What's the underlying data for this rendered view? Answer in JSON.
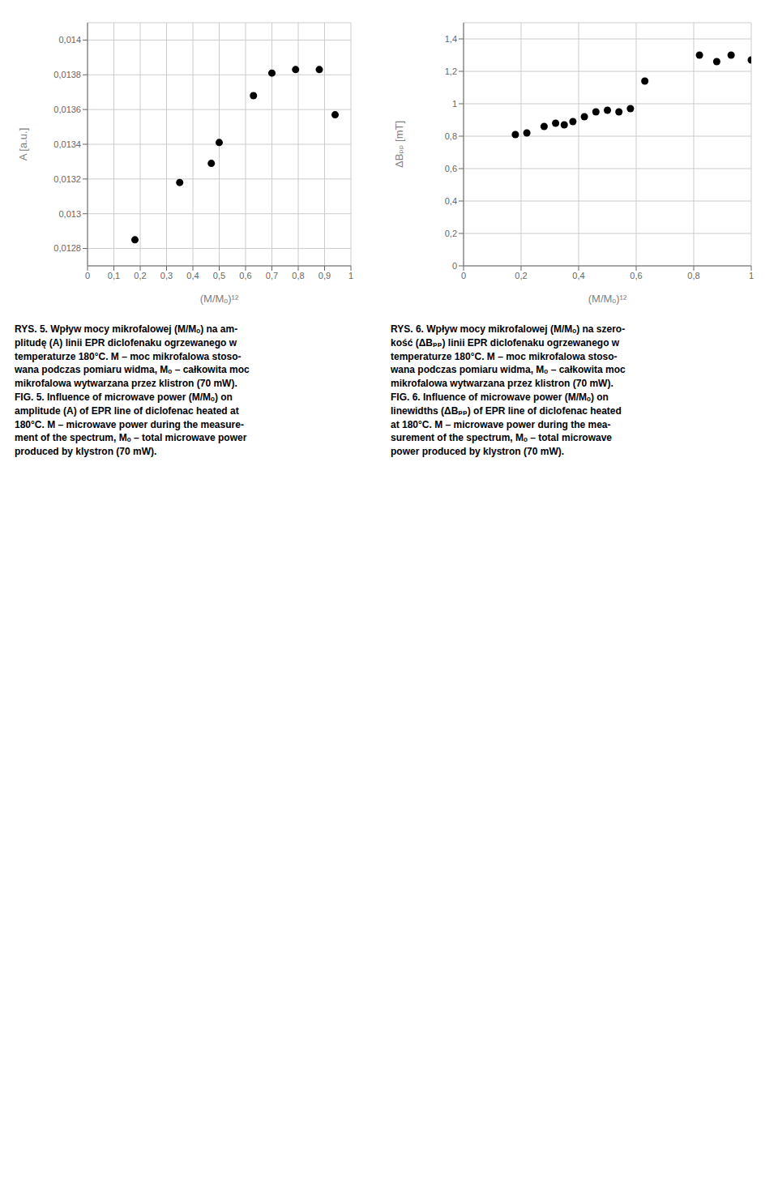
{
  "chart_data": [
    {
      "type": "scatter",
      "title": "RYS. 5. Wpływ mocy mikrofalowej (M/Mₒ) na am-\nplitudę (A) linii EPR diclofenaku ogrzewanego w\ntemperaturze 180°C. M – moc mikrofalowa stoso-\nwana podczas pomiaru widma, Mₒ – całkowita moc\nmikrofalowa wytwarzana przez klistron (70 mW).\nFIG. 5. Influence of microwave power (M/Mₒ) on\namplitude (A) of EPR line of diclofenac heated at\n180°C. M – microwave power during the measure-\nment of the spectrum, Mₒ – total microwave power\nproduced by klystron (70 mW).",
      "xlabel": "(M/Mₒ)¹²",
      "ylabel": "A [a.u.]",
      "x": [
        0.18,
        0.35,
        0.47,
        0.5,
        0.63,
        0.7,
        0.79,
        0.88,
        0.94
      ],
      "values": [
        0.01285,
        0.01318,
        0.01329,
        0.01341,
        0.01368,
        0.01381,
        0.01383,
        0.01383,
        0.01357
      ],
      "xlim": [
        0,
        1.0
      ],
      "ylim": [
        0.0127,
        0.0141
      ],
      "xticks": [
        0,
        {
          "value": 0.1,
          "label": "0,1"
        },
        {
          "value": 0.2,
          "label": "0,2"
        },
        {
          "value": 0.3,
          "label": "0,3"
        },
        {
          "value": 0.4,
          "label": "0,4"
        },
        {
          "value": 0.5,
          "label": "0,5"
        },
        {
          "value": 0.6,
          "label": "0,6"
        },
        {
          "value": 0.7,
          "label": "0,7"
        },
        {
          "value": 0.8,
          "label": "0,8"
        },
        {
          "value": 0.9,
          "label": "0,9"
        },
        1
      ],
      "yticks": [
        {
          "value": 0.0128,
          "label": "0,0128"
        },
        {
          "value": 0.013,
          "label": "0,013"
        },
        {
          "value": 0.0132,
          "label": "0,0132"
        },
        {
          "value": 0.0134,
          "label": "0,0134"
        },
        {
          "value": 0.0136,
          "label": "0,0136"
        },
        {
          "value": 0.0138,
          "label": "0,0138"
        },
        {
          "value": 0.014,
          "label": "0,014"
        }
      ],
      "grid": true,
      "color": "#000000",
      "marker": "circle"
    },
    {
      "type": "scatter",
      "title": "RYS. 6. Wpływ mocy mikrofalowej (M/Mₒ) na szero-\nkość (ΔBₚₚ) linii EPR diclofenaku ogrzewanego w\ntemperaturze 180°C. M – moc mikrofalowa stoso-\nwana podczas pomiaru widma, Mₒ – całkowita moc\nmikrofalowa wytwarzana przez klistron (70 mW).\nFIG. 6. Influence of microwave power (M/Mₒ) on\nlinewidths (ΔBₚₚ) of EPR line of diclofenac heated\nat 180°C. M – microwave power during the mea-\nsurement of the spectrum, Mₒ – total microwave\npower produced by klystron (70 mW).",
      "xlabel": "(M/Mₒ)¹²",
      "ylabel": "ΔBₚₚ [mT]",
      "x": [
        0.18,
        0.22,
        0.28,
        0.32,
        0.35,
        0.38,
        0.42,
        0.46,
        0.5,
        0.54,
        0.58,
        0.63,
        0.82,
        0.88,
        0.93,
        1.0
      ],
      "values": [
        0.81,
        0.82,
        0.86,
        0.88,
        0.87,
        0.89,
        0.92,
        0.95,
        0.96,
        0.95,
        0.97,
        1.14,
        1.3,
        1.26,
        1.3,
        1.27
      ],
      "xlim": [
        0,
        1.0
      ],
      "ylim": [
        0,
        1.5
      ],
      "xticks": [
        0,
        {
          "value": 0.2,
          "label": "0,2"
        },
        {
          "value": 0.4,
          "label": "0,4"
        },
        {
          "value": 0.6,
          "label": "0,6"
        },
        {
          "value": 0.8,
          "label": "0,8"
        },
        1
      ],
      "yticks": [
        0,
        {
          "value": 0.2,
          "label": "0,2"
        },
        {
          "value": 0.4,
          "label": "0,4"
        },
        {
          "value": 0.6,
          "label": "0,6"
        },
        {
          "value": 0.8,
          "label": "0,8"
        },
        1,
        {
          "value": 1.2,
          "label": "1,2"
        },
        {
          "value": 1.4,
          "label": "1,4"
        }
      ],
      "grid": true,
      "color": "#000000",
      "marker": "circle"
    }
  ]
}
